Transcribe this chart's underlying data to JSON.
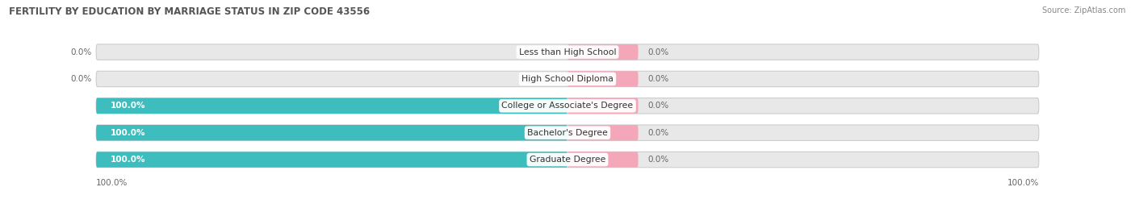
{
  "title": "FERTILITY BY EDUCATION BY MARRIAGE STATUS IN ZIP CODE 43556",
  "source": "Source: ZipAtlas.com",
  "categories": [
    "Less than High School",
    "High School Diploma",
    "College or Associate's Degree",
    "Bachelor's Degree",
    "Graduate Degree"
  ],
  "married_values": [
    0.0,
    0.0,
    100.0,
    100.0,
    100.0
  ],
  "unmarried_values": [
    0.0,
    0.0,
    0.0,
    0.0,
    0.0
  ],
  "married_color": "#3DBDBD",
  "unmarried_color": "#F4A7B9",
  "bar_track_color": "#E8E8E8",
  "bar_track_border": "#D0D0D0",
  "title_color": "#555555",
  "source_color": "#888888",
  "label_color": "#666666",
  "white_label_color": "#FFFFFF",
  "bar_height": 0.58,
  "figsize": [
    14.06,
    2.68
  ],
  "dpi": 100,
  "x_left_label": "100.0%",
  "x_right_label": "100.0%",
  "background_color": "#FFFFFF",
  "plot_bg_color": "#F7F7F7",
  "scale": 100,
  "married_label_threshold": 5,
  "unmarried_stub_pct": 15
}
